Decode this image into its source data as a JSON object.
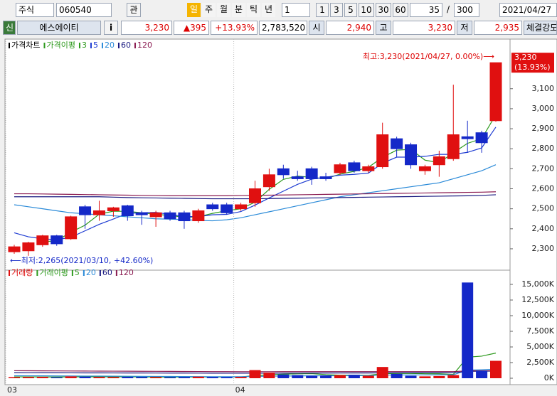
{
  "toolbar": {
    "market": "주식",
    "code": "060540",
    "watch": "관",
    "periods": [
      "일",
      "주",
      "월",
      "분",
      "틱",
      "년"
    ],
    "unit": "1",
    "counts": [
      "1",
      "3",
      "5",
      "10",
      "30",
      "60"
    ],
    "view_count": "35",
    "slash": "/",
    "total": "300",
    "date": "2021/04/27"
  },
  "info_bar": {
    "badge": "신",
    "name": "에스에이티",
    "info_button": "i",
    "price": "3,230",
    "change": "▲395",
    "change_pct": "+13.93%",
    "volume": "2,783,520",
    "open_label": "시",
    "open": "2,940",
    "high_label": "고",
    "high": "3,230",
    "low_label": "저",
    "low": "2,935",
    "strength": "체결강도"
  },
  "chart_data": [
    {
      "type": "candlestick",
      "legend_title": "가격차트",
      "ma_title": "가격이평",
      "categories": [
        "03",
        null,
        null,
        null,
        null,
        null,
        null,
        null,
        null,
        null,
        null,
        null,
        null,
        null,
        null,
        null,
        "04",
        null,
        null,
        null,
        null,
        null,
        null,
        null,
        null,
        null,
        null,
        null,
        null,
        null,
        null,
        null,
        null,
        null,
        null
      ],
      "open": [
        2285,
        2290,
        2320,
        2365,
        2350,
        2510,
        2470,
        2490,
        2515,
        2480,
        2460,
        2480,
        2480,
        2440,
        2520,
        2520,
        2500,
        2530,
        2610,
        2700,
        2660,
        2700,
        2660,
        2680,
        2730,
        2690,
        2710,
        2850,
        2820,
        2690,
        2720,
        2750,
        2860,
        2880,
        2940
      ],
      "high": [
        2320,
        2335,
        2370,
        2370,
        2465,
        2520,
        2540,
        2510,
        2520,
        2490,
        2490,
        2490,
        2490,
        2500,
        2530,
        2530,
        2530,
        2640,
        2700,
        2720,
        2690,
        2710,
        2680,
        2730,
        2740,
        2720,
        2930,
        2860,
        2830,
        2720,
        2790,
        3120,
        2940,
        2890,
        3230
      ],
      "low": [
        2275,
        2265,
        2310,
        2315,
        2345,
        2400,
        2440,
        2460,
        2440,
        2420,
        2410,
        2440,
        2400,
        2430,
        2490,
        2470,
        2490,
        2510,
        2590,
        2650,
        2640,
        2620,
        2640,
        2670,
        2680,
        2680,
        2700,
        2760,
        2700,
        2670,
        2660,
        2740,
        2780,
        2780,
        2935
      ],
      "close": [
        2310,
        2330,
        2365,
        2325,
        2460,
        2470,
        2490,
        2505,
        2465,
        2470,
        2480,
        2450,
        2440,
        2490,
        2500,
        2480,
        2520,
        2600,
        2670,
        2670,
        2650,
        2650,
        2650,
        2720,
        2690,
        2710,
        2870,
        2800,
        2720,
        2710,
        2760,
        2870,
        2850,
        2830,
        3230
      ],
      "up_color": "#e01010",
      "down_color": "#1428c8",
      "series": [
        {
          "name": "3",
          "color": "#2e9a1e",
          "values": [
            null,
            null,
            2335,
            2340,
            2383,
            2418,
            2473,
            2488,
            2487,
            2480,
            2472,
            2467,
            2457,
            2460,
            2477,
            2490,
            2500,
            2533,
            2597,
            2647,
            2663,
            2657,
            2650,
            2673,
            2687,
            2707,
            2757,
            2793,
            2797,
            2743,
            2730,
            2780,
            2827,
            2850,
            2970
          ]
        },
        {
          "name": "5",
          "color": "#1e3cd2",
          "values": [
            2380,
            2360,
            2350,
            2345,
            2358,
            2390,
            2422,
            2449,
            2477,
            2480,
            2482,
            2472,
            2461,
            2461,
            2470,
            2472,
            2486,
            2518,
            2554,
            2588,
            2622,
            2648,
            2658,
            2668,
            2672,
            2678,
            2728,
            2758,
            2758,
            2762,
            2772,
            2772,
            2782,
            2804,
            2908
          ]
        },
        {
          "name": "20",
          "color": "#2a8ad8",
          "values": [
            2520,
            2510,
            2500,
            2490,
            2480,
            2475,
            2470,
            2465,
            2460,
            2455,
            2450,
            2448,
            2446,
            2442,
            2440,
            2445,
            2455,
            2470,
            2485,
            2500,
            2515,
            2530,
            2545,
            2560,
            2570,
            2580,
            2590,
            2600,
            2610,
            2620,
            2630,
            2650,
            2670,
            2690,
            2720
          ]
        },
        {
          "name": "60",
          "color": "#1a1a80",
          "values": [
            2560,
            2560,
            2560,
            2560,
            2560,
            2560,
            2560,
            2558,
            2556,
            2555,
            2554,
            2553,
            2552,
            2551,
            2550,
            2550,
            2550,
            2550,
            2551,
            2552,
            2553,
            2554,
            2555,
            2556,
            2557,
            2558,
            2559,
            2560,
            2561,
            2562,
            2563,
            2564,
            2565,
            2567,
            2570
          ]
        },
        {
          "name": "120",
          "color": "#8a1a50",
          "values": [
            2575,
            2575,
            2574,
            2573,
            2572,
            2571,
            2570,
            2569,
            2568,
            2567,
            2566,
            2565,
            2565,
            2565,
            2565,
            2565,
            2566,
            2567,
            2568,
            2569,
            2570,
            2571,
            2572,
            2573,
            2574,
            2575,
            2576,
            2577,
            2578,
            2579,
            2580,
            2581,
            2582,
            2583,
            2585
          ]
        }
      ],
      "ylim": [
        2211,
        3323
      ],
      "yticks": [
        {
          "value": 2300,
          "label": "2,300"
        },
        {
          "value": 2400,
          "label": "2,400"
        },
        {
          "value": 2500,
          "label": "2,500"
        },
        {
          "value": 2600,
          "label": "2,600"
        },
        {
          "value": 2700,
          "label": "2,700"
        },
        {
          "value": 2800,
          "label": "2,800"
        },
        {
          "value": 2900,
          "label": "2,900"
        },
        {
          "value": 3000,
          "label": "3,000"
        },
        {
          "value": 3100,
          "label": "3,100"
        }
      ],
      "last_label": "3,230",
      "last_pct": "(13.93%)",
      "max_annotation": "최고:3,230(2021/04/27, 0.00%)⟶",
      "min_annotation": "⟵최저:2,265(2021/03/10, +42.60%)"
    },
    {
      "type": "bar",
      "legend_title": "거래량",
      "ma_title": "거래이평",
      "values": [
        180,
        200,
        220,
        150,
        300,
        250,
        200,
        180,
        220,
        200,
        180,
        160,
        190,
        250,
        200,
        180,
        210,
        1300,
        900,
        600,
        500,
        400,
        450,
        500,
        550,
        400,
        1800,
        700,
        400,
        300,
        350,
        500,
        15300,
        1200,
        2784
      ],
      "series": [
        {
          "name": "5",
          "color": "#2e9a1e",
          "values": [
            220,
            210,
            200,
            200,
            210,
            224,
            224,
            220,
            230,
            210,
            196,
            188,
            190,
            196,
            196,
            196,
            206,
            428,
            558,
            638,
            702,
            740,
            570,
            480,
            480,
            460,
            740,
            770,
            770,
            720,
            710,
            610,
            3370,
            3530,
            4020
          ]
        },
        {
          "name": "20",
          "color": "#2a8ad8",
          "values": [
            400,
            390,
            380,
            370,
            360,
            350,
            340,
            330,
            320,
            300,
            290,
            280,
            270,
            260,
            250,
            240,
            240,
            300,
            330,
            350,
            370,
            380,
            390,
            400,
            410,
            420,
            500,
            520,
            530,
            530,
            540,
            550,
            1300,
            1350,
            1450
          ]
        },
        {
          "name": "60",
          "color": "#1a1a80",
          "values": [
            880,
            875,
            870,
            865,
            860,
            855,
            850,
            845,
            840,
            835,
            830,
            825,
            820,
            815,
            810,
            805,
            800,
            800,
            805,
            810,
            815,
            820,
            825,
            830,
            835,
            840,
            860,
            865,
            870,
            870,
            870,
            875,
            1100,
            1120,
            1150
          ]
        },
        {
          "name": "120",
          "color": "#8a1a50",
          "values": [
            1200,
            1190,
            1180,
            1170,
            1160,
            1150,
            1140,
            1130,
            1120,
            1110,
            1100,
            1090,
            1080,
            1070,
            1060,
            1050,
            1040,
            1040,
            1045,
            1050,
            1050,
            1050,
            1050,
            1050,
            1050,
            1050,
            1060,
            1060,
            1060,
            1060,
            1060,
            1060,
            1180,
            1190,
            1200
          ]
        }
      ],
      "ylim": [
        -909,
        17045
      ],
      "yticks": [
        {
          "value": 0,
          "label": "0K"
        },
        {
          "value": 2500,
          "label": "2,500K"
        },
        {
          "value": 5000,
          "label": "5,000K"
        },
        {
          "value": 7500,
          "label": "7,500K"
        },
        {
          "value": 10000,
          "label": "10,000K"
        },
        {
          "value": 12500,
          "label": "12,500K"
        },
        {
          "value": 15000,
          "label": "15,000K"
        }
      ]
    }
  ]
}
